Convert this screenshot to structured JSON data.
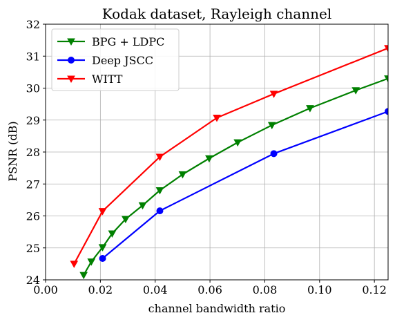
{
  "chart_data": {
    "type": "line",
    "title": "Kodak dataset, Rayleigh channel",
    "xlabel": "channel bandwidth ratio",
    "ylabel": "PSNR (dB)",
    "xlim": [
      0.0,
      0.125
    ],
    "ylim": [
      24,
      32
    ],
    "xticks": [
      "0.00",
      "0.02",
      "0.04",
      "0.06",
      "0.08",
      "0.10",
      "0.12"
    ],
    "yticks": [
      "24",
      "25",
      "26",
      "27",
      "28",
      "29",
      "30",
      "31",
      "32"
    ],
    "grid": true,
    "legend_position": "top-left",
    "series": [
      {
        "name": "BPG + LDPC",
        "color": "#008000",
        "marker": "triangle-down",
        "x": [
          0.0139,
          0.0167,
          0.0208,
          0.0243,
          0.0292,
          0.0354,
          0.0417,
          0.05,
          0.0597,
          0.0701,
          0.0826,
          0.0965,
          0.1132,
          0.125
        ],
        "y": [
          24.15,
          24.57,
          25.02,
          25.45,
          25.9,
          26.33,
          26.8,
          27.3,
          27.8,
          28.3,
          28.84,
          29.37,
          29.93,
          30.3
        ]
      },
      {
        "name": "Deep JSCC",
        "color": "#0000ff",
        "marker": "circle",
        "x": [
          0.0208,
          0.0417,
          0.0833,
          0.125
        ],
        "y": [
          24.67,
          26.16,
          27.95,
          29.27
        ]
      },
      {
        "name": "WITT",
        "color": "#ff0000",
        "marker": "triangle-down",
        "x": [
          0.0104,
          0.0208,
          0.0417,
          0.0625,
          0.0833,
          0.125
        ],
        "y": [
          24.5,
          26.15,
          27.85,
          29.07,
          29.82,
          31.25
        ]
      }
    ]
  }
}
